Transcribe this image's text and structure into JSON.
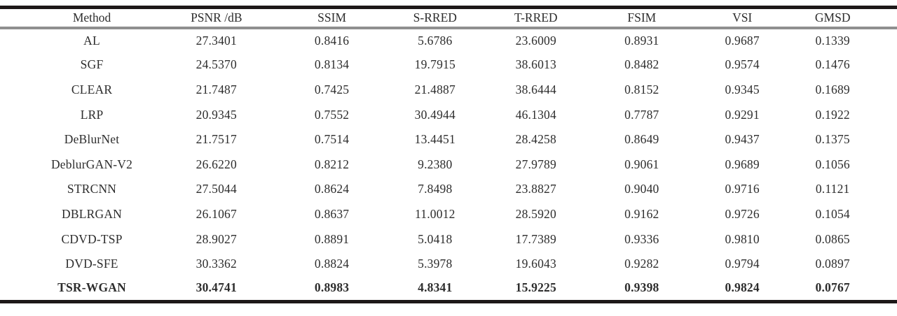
{
  "table": {
    "columns": [
      "Method",
      "PSNR /dB",
      "SSIM",
      "S-RRED",
      "T-RRED",
      "FSIM",
      "VSI",
      "GMSD"
    ],
    "rows": [
      {
        "method": "AL",
        "bold": false,
        "values": [
          "27.3401",
          "0.8416",
          "5.6786",
          "23.6009",
          "0.8931",
          "0.9687",
          "0.1339"
        ]
      },
      {
        "method": "SGF",
        "bold": false,
        "values": [
          "24.5370",
          "0.8134",
          "19.7915",
          "38.6013",
          "0.8482",
          "0.9574",
          "0.1476"
        ]
      },
      {
        "method": "CLEAR",
        "bold": false,
        "values": [
          "21.7487",
          "0.7425",
          "21.4887",
          "38.6444",
          "0.8152",
          "0.9345",
          "0.1689"
        ]
      },
      {
        "method": "LRP",
        "bold": false,
        "values": [
          "20.9345",
          "0.7552",
          "30.4944",
          "46.1304",
          "0.7787",
          "0.9291",
          "0.1922"
        ]
      },
      {
        "method": "DeBlurNet",
        "bold": false,
        "values": [
          "21.7517",
          "0.7514",
          "13.4451",
          "28.4258",
          "0.8649",
          "0.9437",
          "0.1375"
        ]
      },
      {
        "method": "DeblurGAN-V2",
        "bold": false,
        "values": [
          "26.6220",
          "0.8212",
          "9.2380",
          "27.9789",
          "0.9061",
          "0.9689",
          "0.1056"
        ]
      },
      {
        "method": "STRCNN",
        "bold": false,
        "values": [
          "27.5044",
          "0.8624",
          "7.8498",
          "23.8827",
          "0.9040",
          "0.9716",
          "0.1121"
        ]
      },
      {
        "method": "DBLRGAN",
        "bold": false,
        "values": [
          "26.1067",
          "0.8637",
          "11.0012",
          "28.5920",
          "0.9162",
          "0.9726",
          "0.1054"
        ]
      },
      {
        "method": "CDVD-TSP",
        "bold": false,
        "values": [
          "28.9027",
          "0.8891",
          "5.0418",
          "17.7389",
          "0.9336",
          "0.9810",
          "0.0865"
        ]
      },
      {
        "method": "DVD-SFE",
        "bold": false,
        "values": [
          "30.3362",
          "0.8824",
          "5.3978",
          "19.6043",
          "0.9282",
          "0.9794",
          "0.0897"
        ]
      },
      {
        "method": "TSR-WGAN",
        "bold": true,
        "values": [
          "30.4741",
          "0.8983",
          "4.8341",
          "15.9225",
          "0.9398",
          "0.9824",
          "0.0767"
        ]
      }
    ]
  }
}
